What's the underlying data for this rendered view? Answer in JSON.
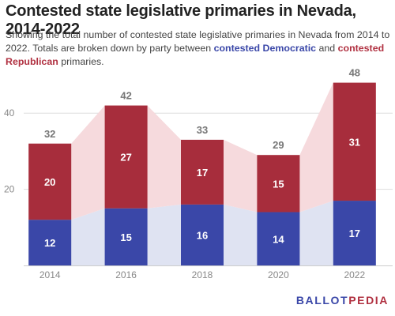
{
  "title": "Contested state legislative primaries in Nevada, 2014-2022",
  "subtitle": {
    "part1": "Showing the total number of contested state legislative primaries in Nevada from 2014 to 2022. Totals are broken down by party between ",
    "dem_text": "contested Democratic",
    "part2": " and ",
    "rep_text": "contested Republican",
    "part3": " primaries."
  },
  "logo": {
    "part1": "BALLOT",
    "part2": "PEDIA"
  },
  "colors": {
    "democratic": "#3a47a8",
    "republican": "#a72d3c",
    "democratic_area": "#dfe3f2",
    "republican_area": "#f6dadd",
    "grid": "#dddddd",
    "axis_text": "#888888"
  },
  "chart_data": {
    "type": "bar",
    "stacked": true,
    "categories": [
      "2014",
      "2016",
      "2018",
      "2020",
      "2022"
    ],
    "series": [
      {
        "name": "contested Democratic",
        "values": [
          12,
          15,
          16,
          14,
          17
        ]
      },
      {
        "name": "contested Republican",
        "values": [
          20,
          27,
          17,
          15,
          31
        ]
      }
    ],
    "totals": [
      32,
      42,
      33,
      29,
      48
    ],
    "yticks": [
      20,
      40
    ],
    "ylim": [
      0,
      50
    ],
    "grid": true,
    "legend": "none"
  }
}
